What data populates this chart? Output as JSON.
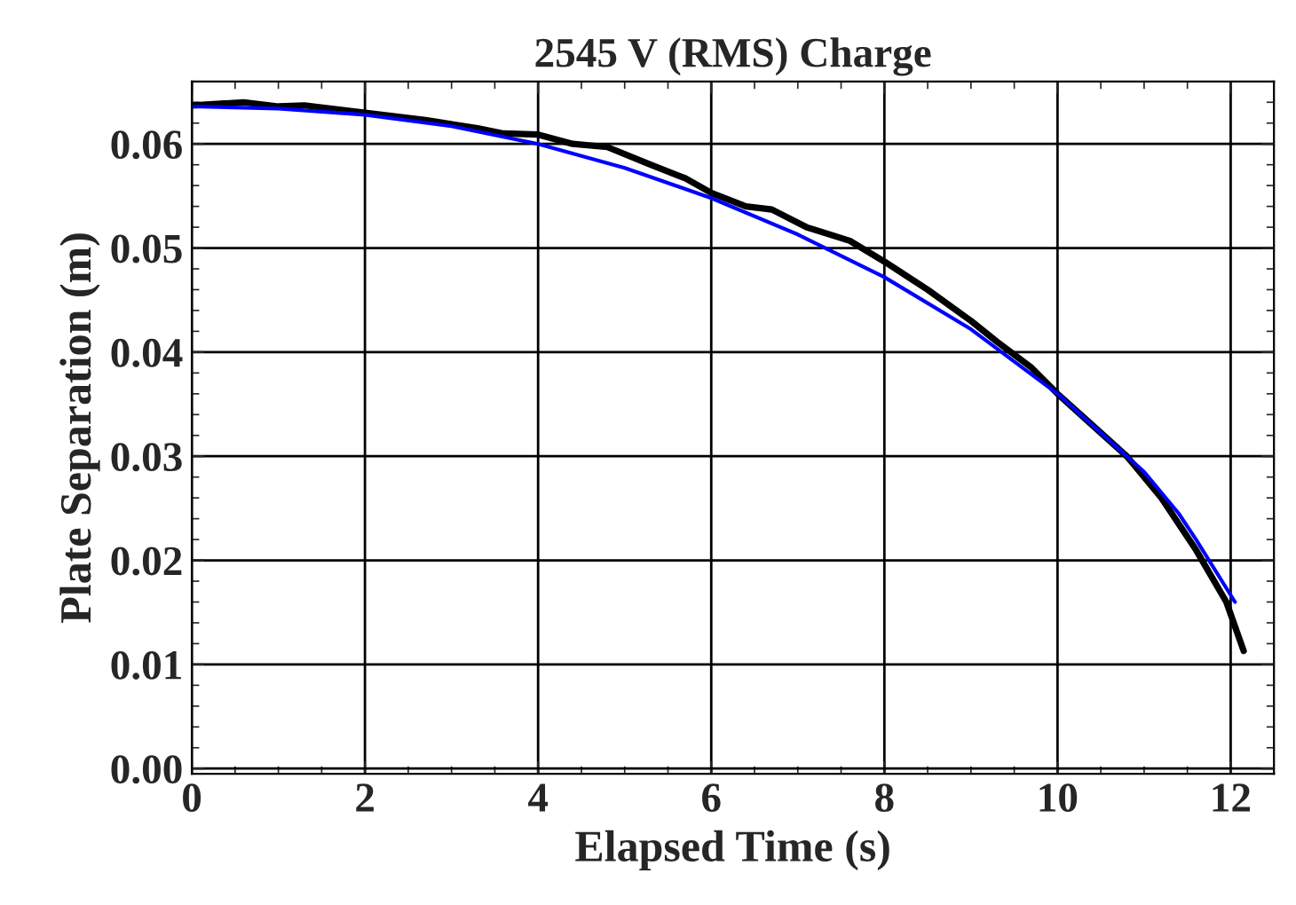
{
  "chart_data": {
    "type": "line",
    "title": "2545 V (RMS) Charge",
    "xlabel": "Elapsed Time (s)",
    "ylabel": "Plate Separation (m)",
    "series": [
      {
        "color": "#000000",
        "x": [
          0,
          0.6,
          1.0,
          1.3,
          2.0,
          2.7,
          3.3,
          3.6,
          4.0,
          4.4,
          4.8,
          5.3,
          5.7,
          6.0,
          6.4,
          6.7,
          7.1,
          7.6,
          8.0,
          8.5,
          9.0,
          9.3,
          9.7,
          10.0,
          10.4,
          10.8,
          11.2,
          11.6,
          11.95,
          12.15
        ],
        "values": [
          0.0637,
          0.064,
          0.0636,
          0.0637,
          0.063,
          0.0623,
          0.0615,
          0.061,
          0.0609,
          0.06,
          0.0597,
          0.058,
          0.0567,
          0.0553,
          0.054,
          0.0537,
          0.052,
          0.0507,
          0.0487,
          0.046,
          0.043,
          0.041,
          0.0385,
          0.036,
          0.033,
          0.03,
          0.026,
          0.021,
          0.016,
          0.0113
        ]
      },
      {
        "color": "#0000ff",
        "x": [
          0,
          1,
          2,
          3,
          4,
          5,
          6,
          7,
          8,
          9,
          10,
          10.8,
          11,
          11.4,
          11.6,
          12.05
        ],
        "values": [
          0.0636,
          0.0634,
          0.0628,
          0.0617,
          0.06,
          0.0577,
          0.0548,
          0.0513,
          0.0472,
          0.0422,
          0.036,
          0.03,
          0.0285,
          0.0245,
          0.022,
          0.016
        ]
      }
    ],
    "xlim": [
      0,
      12.5
    ],
    "ylim": [
      -0.0005,
      0.066
    ],
    "xticks": [
      0,
      2,
      4,
      6,
      8,
      10,
      12
    ],
    "yticks": [
      {
        "value": 0,
        "label": "0.00"
      },
      {
        "value": 0.01,
        "label": "0.01"
      },
      {
        "value": 0.02,
        "label": "0.02"
      },
      {
        "value": 0.03,
        "label": "0.03"
      },
      {
        "value": 0.04,
        "label": "0.04"
      },
      {
        "value": 0.05,
        "label": "0.05"
      },
      {
        "value": 0.06,
        "label": "0.06"
      }
    ],
    "grid": true,
    "legend": false,
    "marker": "none",
    "line_style": "solid"
  }
}
